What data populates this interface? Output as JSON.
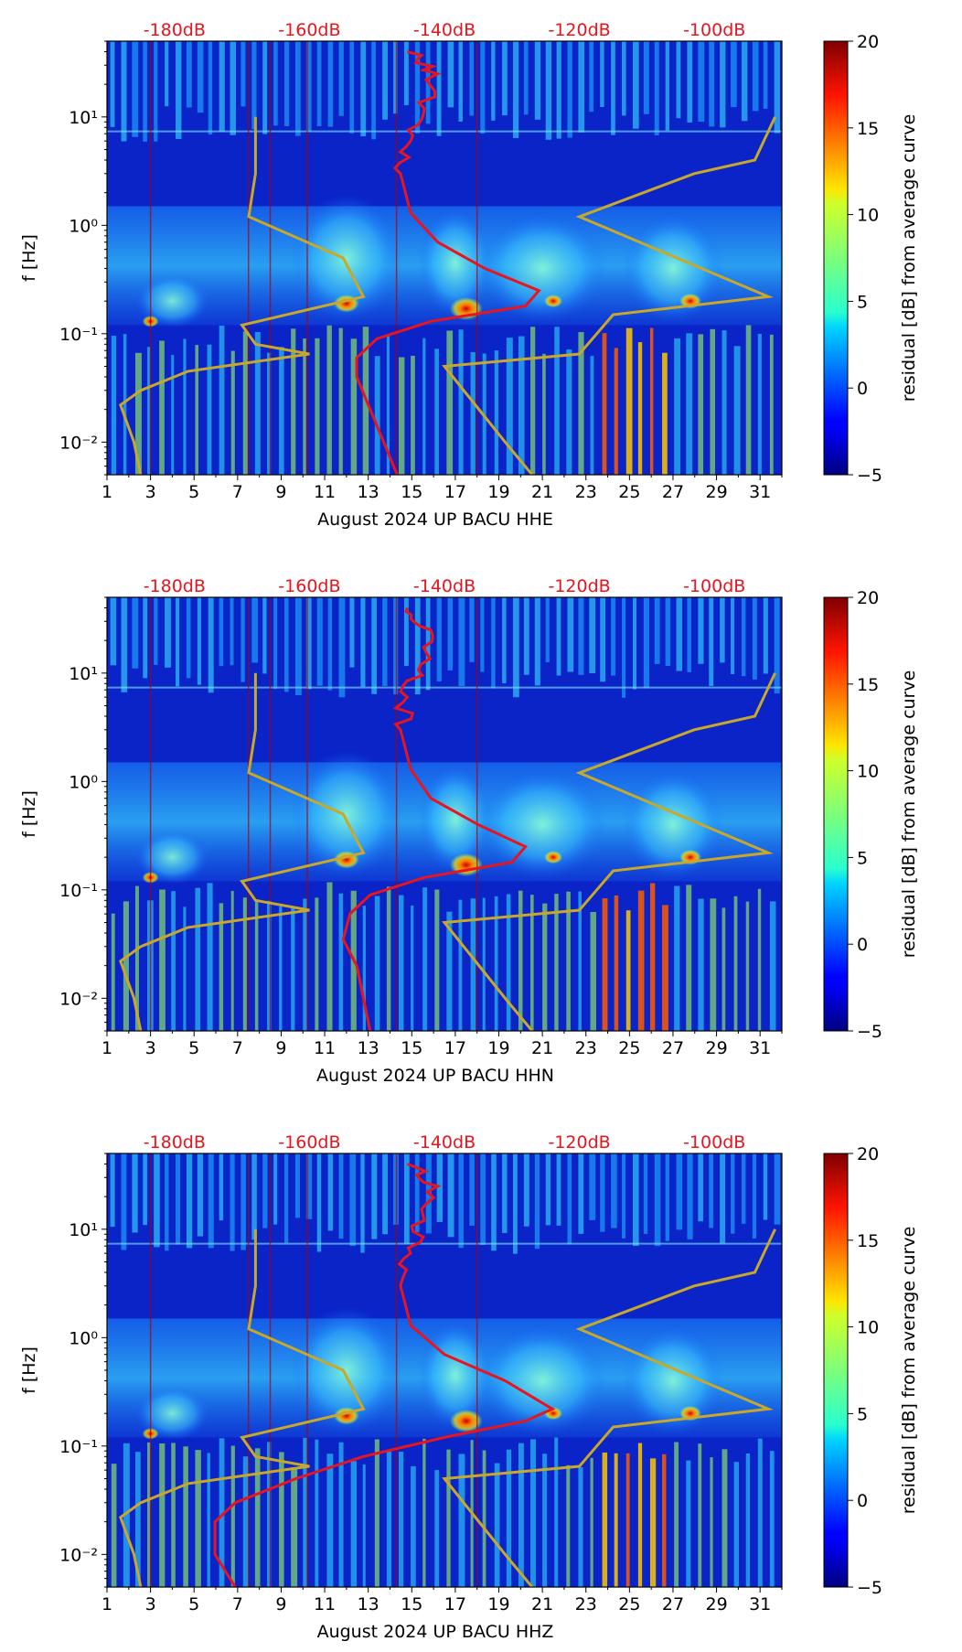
{
  "chart_data": [
    {
      "type": "heatmap",
      "title": "",
      "xlabel": "August 2024 UP BACU  HHE",
      "ylabel": "f [Hz]",
      "x_ticks": [
        "1",
        "3",
        "5",
        "7",
        "9",
        "11",
        "13",
        "15",
        "17",
        "19",
        "21",
        "23",
        "25",
        "27",
        "29",
        "31"
      ],
      "x_range": [
        1,
        32
      ],
      "y_scale": "log",
      "y_range": [
        0.005,
        50
      ],
      "y_tick_labels": [
        "10⁻²",
        "10⁻¹",
        "10⁰",
        "10¹"
      ],
      "top_axis_labels": [
        "-180dB",
        "-160dB",
        "-140dB",
        "-120dB",
        "-100dB"
      ],
      "colorbar_label": "residual [dB] from average curve",
      "colorbar_ticks": [
        "20",
        "15",
        "10",
        "5",
        "0",
        "−5"
      ],
      "colorbar_range": [
        -5,
        20
      ],
      "overlays": [
        {
          "name": "average PSD curve (top axis, dB)",
          "color": "#e8141e",
          "points": [
            [
              -145.5,
              40
            ],
            [
              -141,
              25
            ],
            [
              -143,
              12
            ],
            [
              -145,
              6
            ],
            [
              -146.5,
              3
            ],
            [
              -145,
              1.3
            ],
            [
              -141,
              0.7
            ],
            [
              -134,
              0.4
            ],
            [
              -126,
              0.25
            ],
            [
              -128,
              0.18
            ],
            [
              -142,
              0.13
            ],
            [
              -150,
              0.09
            ],
            [
              -153,
              0.06
            ],
            [
              -153,
              0.04
            ],
            [
              -151,
              0.02
            ],
            [
              -149,
              0.01
            ],
            [
              -147,
              0.005
            ]
          ]
        },
        {
          "name": "NLNM/NHNM noise models (top axis, dB)",
          "color": "#c8a82a",
          "points_low": [
            [
              -168,
              10
            ],
            [
              -168,
              3
            ],
            [
              -169,
              1.2
            ],
            [
              -155,
              0.5
            ],
            [
              -152,
              0.22
            ],
            [
              -170,
              0.12
            ],
            [
              -168,
              0.08
            ],
            [
              -160,
              0.065
            ],
            [
              -178,
              0.045
            ],
            [
              -185,
              0.03
            ],
            [
              -188,
              0.022
            ],
            [
              -186,
              0.01
            ],
            [
              -185,
              0.005
            ]
          ],
          "points_high": [
            [
              -91,
              10
            ],
            [
              -94,
              4
            ],
            [
              -103,
              3
            ],
            [
              -120,
              1.2
            ],
            [
              -92,
              0.22
            ],
            [
              -115,
              0.15
            ],
            [
              -120,
              0.065
            ],
            [
              -140,
              0.05
            ],
            [
              -131,
              0.01
            ],
            [
              -127,
              0.005
            ]
          ]
        }
      ]
    },
    {
      "type": "heatmap",
      "title": "",
      "xlabel": "August 2024 UP BACU  HHN",
      "ylabel": "f [Hz]",
      "x_ticks": [
        "1",
        "3",
        "5",
        "7",
        "9",
        "11",
        "13",
        "15",
        "17",
        "19",
        "21",
        "23",
        "25",
        "27",
        "29",
        "31"
      ],
      "x_range": [
        1,
        32
      ],
      "y_scale": "log",
      "y_range": [
        0.005,
        50
      ],
      "y_tick_labels": [
        "10⁻²",
        "10⁻¹",
        "10⁰",
        "10¹"
      ],
      "top_axis_labels": [
        "-180dB",
        "-160dB",
        "-140dB",
        "-120dB",
        "-100dB"
      ],
      "colorbar_label": "residual [dB] from average curve",
      "colorbar_ticks": [
        "20",
        "15",
        "10",
        "5",
        "0",
        "−5"
      ],
      "colorbar_range": [
        -5,
        20
      ],
      "overlays": [
        {
          "name": "average PSD curve (top axis, dB)",
          "color": "#e8141e",
          "points": [
            [
              -145.5,
              40
            ],
            [
              -142,
              25
            ],
            [
              -143.5,
              12
            ],
            [
              -145.5,
              6
            ],
            [
              -146.5,
              3
            ],
            [
              -145,
              1.3
            ],
            [
              -142,
              0.7
            ],
            [
              -135,
              0.4
            ],
            [
              -128,
              0.25
            ],
            [
              -130,
              0.18
            ],
            [
              -143,
              0.13
            ],
            [
              -151,
              0.09
            ],
            [
              -154,
              0.06
            ],
            [
              -155,
              0.035
            ],
            [
              -153,
              0.02
            ],
            [
              -152,
              0.01
            ],
            [
              -151,
              0.005
            ]
          ]
        },
        {
          "name": "NLNM/NHNM noise models (top axis, dB)",
          "color": "#c8a82a",
          "points_low": [
            [
              -168,
              10
            ],
            [
              -168,
              3
            ],
            [
              -169,
              1.2
            ],
            [
              -155,
              0.5
            ],
            [
              -152,
              0.22
            ],
            [
              -170,
              0.12
            ],
            [
              -168,
              0.08
            ],
            [
              -160,
              0.065
            ],
            [
              -178,
              0.045
            ],
            [
              -185,
              0.03
            ],
            [
              -188,
              0.022
            ],
            [
              -186,
              0.01
            ],
            [
              -185,
              0.005
            ]
          ],
          "points_high": [
            [
              -91,
              10
            ],
            [
              -94,
              4
            ],
            [
              -103,
              3
            ],
            [
              -120,
              1.2
            ],
            [
              -92,
              0.22
            ],
            [
              -115,
              0.15
            ],
            [
              -120,
              0.065
            ],
            [
              -140,
              0.05
            ],
            [
              -131,
              0.01
            ],
            [
              -127,
              0.005
            ]
          ]
        }
      ]
    },
    {
      "type": "heatmap",
      "title": "",
      "xlabel": "August 2024 UP BACU  HHZ",
      "ylabel": "f [Hz]",
      "x_ticks": [
        "1",
        "3",
        "5",
        "7",
        "9",
        "11",
        "13",
        "15",
        "17",
        "19",
        "21",
        "23",
        "25",
        "27",
        "29",
        "31"
      ],
      "x_range": [
        1,
        32
      ],
      "y_scale": "log",
      "y_range": [
        0.005,
        50
      ],
      "y_tick_labels": [
        "10⁻²",
        "10⁻¹",
        "10⁰",
        "10¹"
      ],
      "top_axis_labels": [
        "-180dB",
        "-160dB",
        "-140dB",
        "-120dB",
        "-100dB"
      ],
      "colorbar_label": "residual [dB] from average curve",
      "colorbar_ticks": [
        "20",
        "15",
        "10",
        "5",
        "0",
        "−5"
      ],
      "colorbar_range": [
        -5,
        20
      ],
      "overlays": [
        {
          "name": "average PSD curve (top axis, dB)",
          "color": "#e8141e",
          "points": [
            [
              -145.5,
              40
            ],
            [
              -141,
              25
            ],
            [
              -143,
              12
            ],
            [
              -145,
              6
            ],
            [
              -146.5,
              3
            ],
            [
              -145,
              1.3
            ],
            [
              -140,
              0.7
            ],
            [
              -131,
              0.4
            ],
            [
              -124,
              0.22
            ],
            [
              -128,
              0.17
            ],
            [
              -140,
              0.12
            ],
            [
              -152,
              0.08
            ],
            [
              -162,
              0.05
            ],
            [
              -171,
              0.03
            ],
            [
              -174,
              0.02
            ],
            [
              -174,
              0.01
            ],
            [
              -171,
              0.005
            ]
          ]
        },
        {
          "name": "NLNM/NHNM noise models (top axis, dB)",
          "color": "#c8a82a",
          "points_low": [
            [
              -168,
              10
            ],
            [
              -168,
              3
            ],
            [
              -169,
              1.2
            ],
            [
              -155,
              0.5
            ],
            [
              -152,
              0.22
            ],
            [
              -170,
              0.12
            ],
            [
              -168,
              0.08
            ],
            [
              -160,
              0.065
            ],
            [
              -178,
              0.045
            ],
            [
              -185,
              0.03
            ],
            [
              -188,
              0.022
            ],
            [
              -186,
              0.01
            ],
            [
              -185,
              0.005
            ]
          ],
          "points_high": [
            [
              -91,
              10
            ],
            [
              -94,
              4
            ],
            [
              -103,
              3
            ],
            [
              -120,
              1.2
            ],
            [
              -92,
              0.22
            ],
            [
              -115,
              0.15
            ],
            [
              -120,
              0.065
            ],
            [
              -140,
              0.05
            ],
            [
              -131,
              0.01
            ],
            [
              -127,
              0.005
            ]
          ]
        }
      ]
    }
  ]
}
